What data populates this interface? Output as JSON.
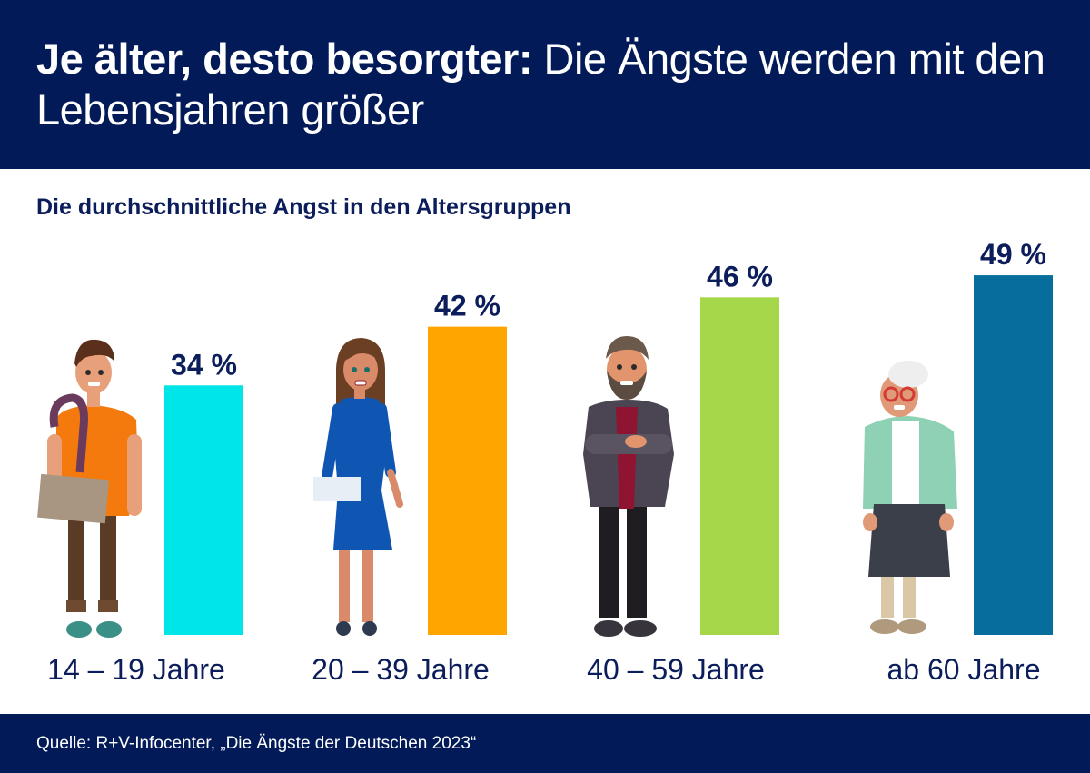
{
  "header": {
    "title_bold": "Je älter, desto besorgter:",
    "title_rest": " Die Ängste werden mit den Lebensjahren größer",
    "background_color": "#021a57"
  },
  "subtitle": "Die durchschnittliche Angst in den Altersgruppen",
  "footer": {
    "source": "Quelle: R+V-Infocenter, „Die Ängste der Deutschen 2023“"
  },
  "figures": [
    {
      "name": "teenager-figure",
      "description": "Teenage boy with backpack and book"
    },
    {
      "name": "young-woman-figure",
      "description": "Young woman in blue dress"
    },
    {
      "name": "middle-aged-man-figure",
      "description": "Bearded man with crossed arms"
    },
    {
      "name": "senior-woman-figure",
      "description": "Elderly woman with glasses and cardigan"
    }
  ],
  "chart_data": {
    "type": "bar",
    "title": "Die durchschnittliche Angst in den Altersgruppen",
    "xlabel": "",
    "ylabel": "",
    "categories": [
      "14 – 19 Jahre",
      "20 – 39 Jahre",
      "40 – 59 Jahre",
      "ab 60 Jahre"
    ],
    "values": [
      34,
      42,
      46,
      49
    ],
    "value_labels": [
      "34 %",
      "42 %",
      "46 %",
      "49 %"
    ],
    "colors": [
      "#00e5e8",
      "#ffa500",
      "#a6d64a",
      "#066d9c"
    ],
    "unit": "%",
    "grid": false,
    "legend": "none"
  }
}
